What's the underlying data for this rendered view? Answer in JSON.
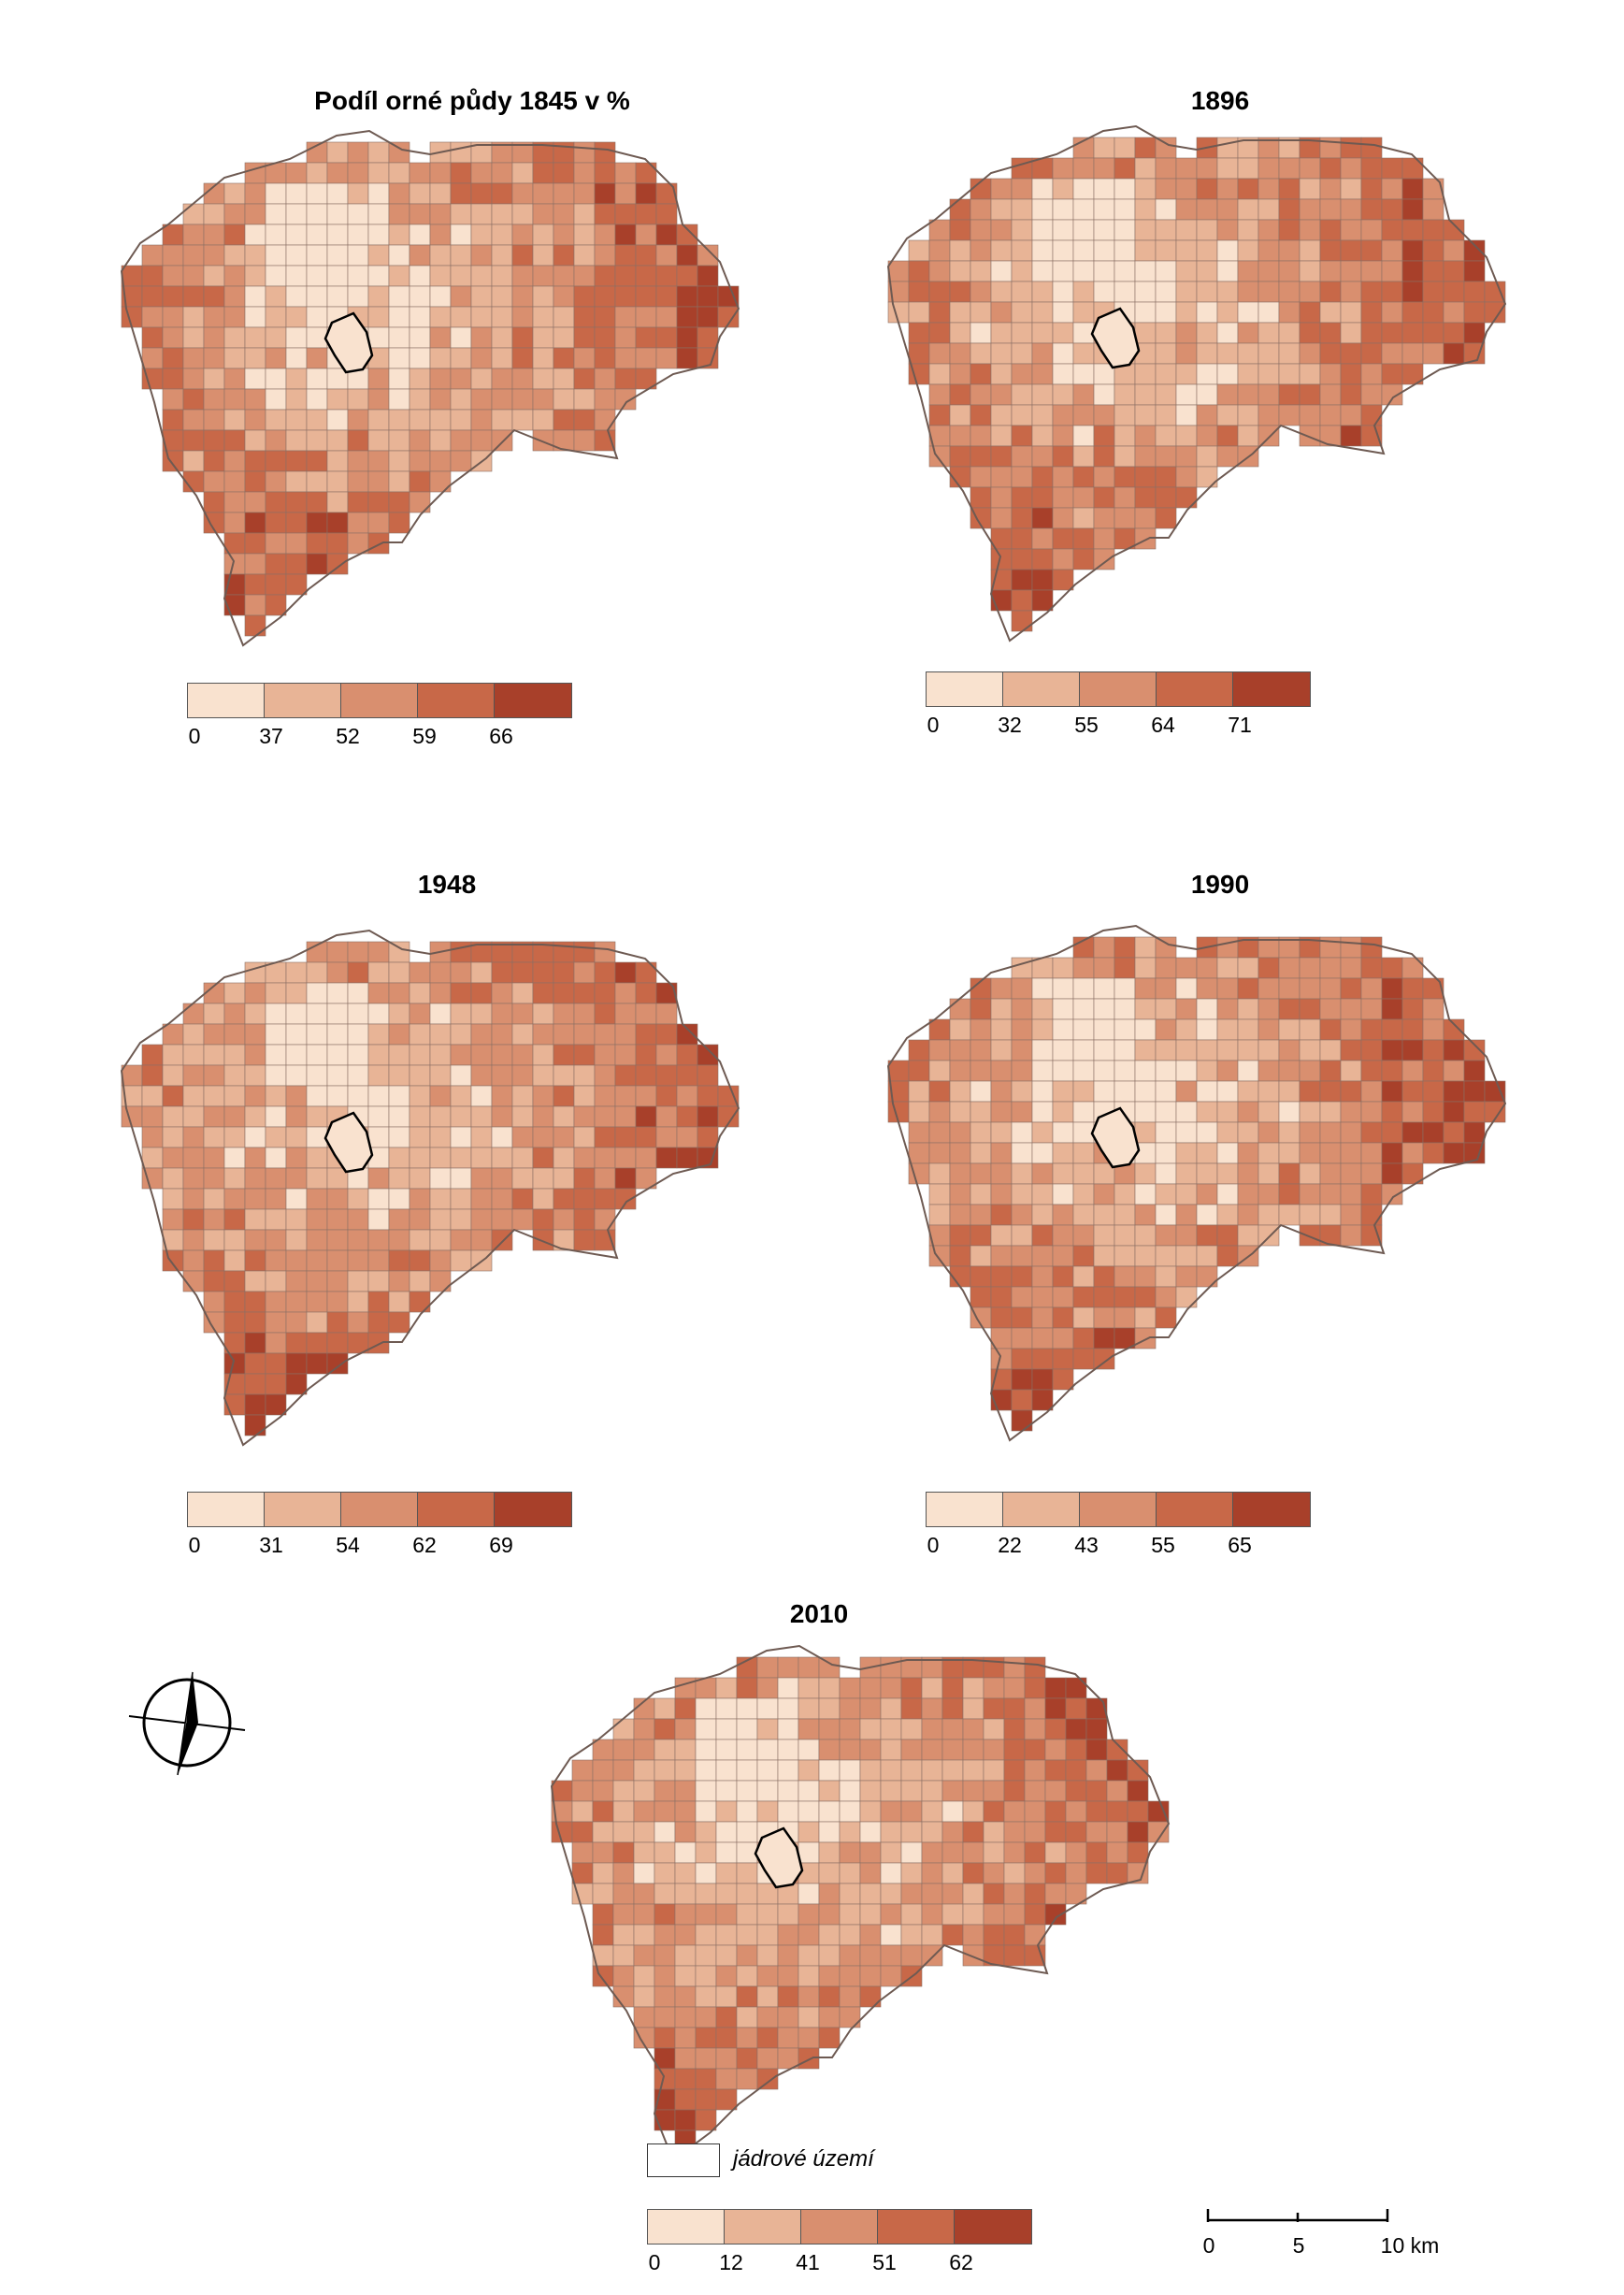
{
  "colors": [
    "#f9e2cf",
    "#e8b496",
    "#d98f6f",
    "#c86848",
    "#a8402a"
  ],
  "core_area_stroke": "#000000",
  "maps": [
    {
      "title": "Podíl orné půdy 1845 v %",
      "breaks": [
        "0",
        "37",
        "52",
        "59",
        "66"
      ]
    },
    {
      "title": "1896",
      "breaks": [
        "0",
        "32",
        "55",
        "64",
        "71"
      ]
    },
    {
      "title": "1948",
      "breaks": [
        "0",
        "31",
        "54",
        "62",
        "69"
      ]
    },
    {
      "title": "1990",
      "breaks": [
        "0",
        "22",
        "43",
        "55",
        "65"
      ]
    },
    {
      "title": "2010",
      "breaks": [
        "0",
        "12",
        "41",
        "51",
        "62"
      ]
    }
  ],
  "core_legend_label": "jádrové území",
  "scale": {
    "labels": [
      "0",
      "5",
      "10 km"
    ]
  },
  "north_arrow_icon": "north-arrow-icon"
}
